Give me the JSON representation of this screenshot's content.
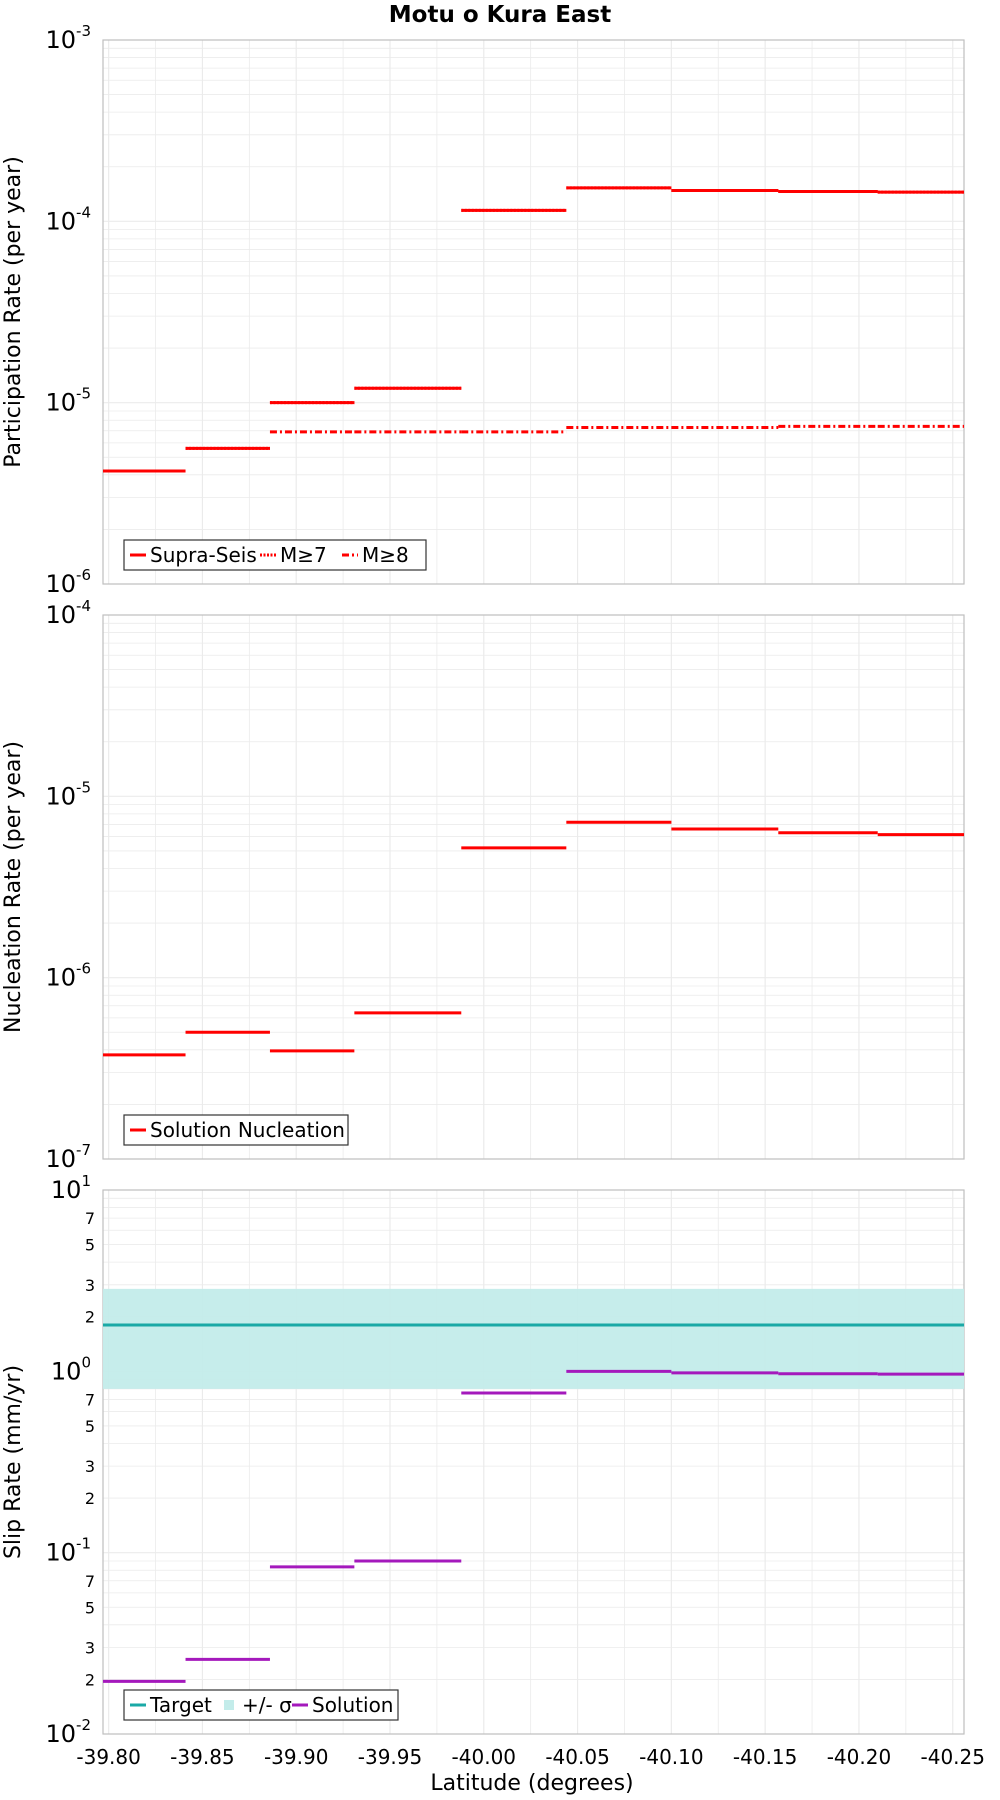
{
  "title": "Motu o Kura East",
  "xlabel": "Latitude (degrees)",
  "colors": {
    "red": "#ff0000",
    "teal": "#1aa9a6",
    "band": "#c3ecea",
    "purple": "#a419bc",
    "grid": "#ebebeb",
    "frame": "#bfbfbf"
  },
  "chart_data": [
    {
      "type": "line",
      "panel": "top",
      "ylabel": "Participation Rate (per year)",
      "yscale": "log",
      "ylim": [
        1e-06,
        0.001
      ],
      "xlim": [
        -39.797,
        -40.256
      ],
      "x_reversed": true,
      "xticks": [
        -39.8,
        -39.85,
        -39.9,
        -39.95,
        -40.0,
        -40.05,
        -40.1,
        -40.15,
        -40.2,
        -40.25
      ],
      "ytick_labels": [
        {
          "base": "10",
          "exp": "-6"
        },
        {
          "base": "10",
          "exp": "-5"
        },
        {
          "base": "10",
          "exp": "-4"
        },
        {
          "base": "10",
          "exp": "-3"
        }
      ],
      "grid": true,
      "legend_position": "bottom-left",
      "legend": [
        "Supra-Seis",
        "M≥7",
        "M≥8"
      ],
      "series": [
        {
          "name": "Supra-Seis",
          "style": "solid",
          "steps": [
            {
              "x0": -39.797,
              "x1": -39.841,
              "y": 4.2e-06
            },
            {
              "x0": -39.841,
              "x1": -39.886,
              "y": 5.6e-06
            },
            {
              "x0": -39.886,
              "x1": -39.931,
              "y": 1e-05
            },
            {
              "x0": -39.931,
              "x1": -39.988,
              "y": 1.2e-05
            },
            {
              "x0": -39.988,
              "x1": -40.044,
              "y": 0.000115
            },
            {
              "x0": -40.044,
              "x1": -40.1,
              "y": 0.000153
            },
            {
              "x0": -40.1,
              "x1": -40.157,
              "y": 0.000148
            },
            {
              "x0": -40.157,
              "x1": -40.21,
              "y": 0.000146
            },
            {
              "x0": -40.21,
              "x1": -40.256,
              "y": 0.000145
            }
          ]
        },
        {
          "name": "M≥7",
          "style": "dotted",
          "steps": [
            {
              "x0": -39.797,
              "x1": -39.841,
              "y": 4.2e-06
            },
            {
              "x0": -39.841,
              "x1": -39.886,
              "y": 5.6e-06
            },
            {
              "x0": -39.886,
              "x1": -39.931,
              "y": 1e-05
            },
            {
              "x0": -39.931,
              "x1": -39.988,
              "y": 1.2e-05
            },
            {
              "x0": -39.988,
              "x1": -40.044,
              "y": 0.000115
            },
            {
              "x0": -40.044,
              "x1": -40.1,
              "y": 0.000153
            },
            {
              "x0": -40.1,
              "x1": -40.157,
              "y": 0.000148
            },
            {
              "x0": -40.157,
              "x1": -40.21,
              "y": 0.000146
            },
            {
              "x0": -40.21,
              "x1": -40.256,
              "y": 0.000145
            }
          ]
        },
        {
          "name": "M≥8",
          "style": "dashdot",
          "steps": [
            {
              "x0": -39.886,
              "x1": -39.931,
              "y": 6.9e-06
            },
            {
              "x0": -39.931,
              "x1": -39.988,
              "y": 6.9e-06
            },
            {
              "x0": -39.988,
              "x1": -40.044,
              "y": 6.9e-06
            },
            {
              "x0": -40.044,
              "x1": -40.1,
              "y": 7.3e-06
            },
            {
              "x0": -40.1,
              "x1": -40.157,
              "y": 7.3e-06
            },
            {
              "x0": -40.157,
              "x1": -40.21,
              "y": 7.4e-06
            },
            {
              "x0": -40.21,
              "x1": -40.256,
              "y": 7.4e-06
            }
          ]
        }
      ]
    },
    {
      "type": "line",
      "panel": "middle",
      "ylabel": "Nucleation Rate (per year)",
      "yscale": "log",
      "ylim": [
        1e-07,
        0.0001
      ],
      "xlim": [
        -39.797,
        -40.256
      ],
      "x_reversed": true,
      "ytick_labels": [
        {
          "base": "10",
          "exp": "-7"
        },
        {
          "base": "10",
          "exp": "-6"
        },
        {
          "base": "10",
          "exp": "-5"
        },
        {
          "base": "10",
          "exp": "-4"
        }
      ],
      "grid": true,
      "legend_position": "bottom-left",
      "legend": [
        "Solution Nucleation"
      ],
      "series": [
        {
          "name": "Solution Nucleation",
          "style": "solid",
          "steps": [
            {
              "x0": -39.797,
              "x1": -39.841,
              "y": 3.75e-07
            },
            {
              "x0": -39.841,
              "x1": -39.886,
              "y": 5e-07
            },
            {
              "x0": -39.886,
              "x1": -39.931,
              "y": 3.95e-07
            },
            {
              "x0": -39.931,
              "x1": -39.988,
              "y": 6.4e-07
            },
            {
              "x0": -39.988,
              "x1": -40.044,
              "y": 5.2e-06
            },
            {
              "x0": -40.044,
              "x1": -40.1,
              "y": 7.2e-06
            },
            {
              "x0": -40.1,
              "x1": -40.157,
              "y": 6.6e-06
            },
            {
              "x0": -40.157,
              "x1": -40.21,
              "y": 6.3e-06
            },
            {
              "x0": -40.21,
              "x1": -40.256,
              "y": 6.15e-06
            }
          ]
        }
      ]
    },
    {
      "type": "line",
      "panel": "bottom",
      "ylabel": "Slip Rate (mm/yr)",
      "yscale": "log",
      "ylim": [
        0.01,
        10
      ],
      "xlim": [
        -39.797,
        -40.256
      ],
      "x_reversed": true,
      "ytick_labels": [
        {
          "base": "10",
          "exp": "-2"
        },
        {
          "base": "10",
          "exp": "-1"
        },
        {
          "base": "10",
          "exp": "0"
        },
        {
          "base": "10",
          "exp": "1"
        }
      ],
      "minor_tick_labels": [
        2,
        3,
        5,
        7
      ],
      "grid": true,
      "legend_position": "bottom-left",
      "legend": [
        "Target",
        "+/- σ",
        "Solution"
      ],
      "band": {
        "name": "+/- σ",
        "y0": 0.8,
        "y1": 2.85,
        "x0": -39.797,
        "x1": -40.256
      },
      "series": [
        {
          "name": "Target",
          "style": "solid",
          "steps": [
            {
              "x0": -39.797,
              "x1": -40.256,
              "y": 1.8
            }
          ]
        },
        {
          "name": "Solution",
          "style": "solid",
          "steps": [
            {
              "x0": -39.797,
              "x1": -39.841,
              "y": 0.0195
            },
            {
              "x0": -39.841,
              "x1": -39.886,
              "y": 0.0258
            },
            {
              "x0": -39.886,
              "x1": -39.931,
              "y": 0.0835
            },
            {
              "x0": -39.931,
              "x1": -39.988,
              "y": 0.09
            },
            {
              "x0": -39.988,
              "x1": -40.044,
              "y": 0.76
            },
            {
              "x0": -40.044,
              "x1": -40.1,
              "y": 1.0
            },
            {
              "x0": -40.1,
              "x1": -40.157,
              "y": 0.98
            },
            {
              "x0": -40.157,
              "x1": -40.21,
              "y": 0.97
            },
            {
              "x0": -40.21,
              "x1": -40.256,
              "y": 0.965
            }
          ]
        }
      ]
    }
  ]
}
